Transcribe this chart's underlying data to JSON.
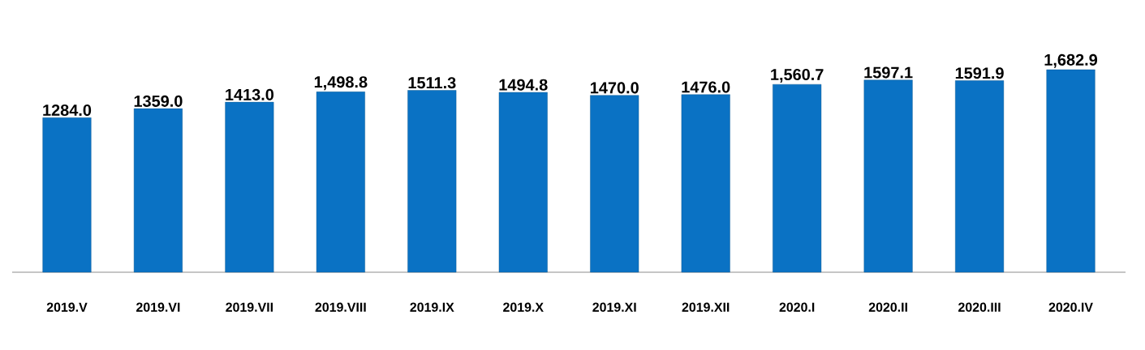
{
  "chart_data": {
    "type": "bar",
    "categories": [
      "2019.V",
      "2019.VI",
      "2019.VII",
      "2019.VIII",
      "2019.IX",
      "2019.X",
      "2019.XI",
      "2019.XII",
      "2020.I",
      "2020.II",
      "2020.III",
      "2020.IV"
    ],
    "values": [
      1284.0,
      1359.0,
      1413.0,
      1498.8,
      1511.3,
      1494.8,
      1470.0,
      1476.0,
      1560.7,
      1597.1,
      1591.9,
      1682.9
    ],
    "value_labels": [
      "1284.0",
      "1359.0",
      "1413.0",
      "1,498.8",
      "1511.3",
      "1494.8",
      "1470.0",
      "1476.0",
      "1,560.7",
      "1597.1",
      "1591.9",
      "1,682.9"
    ],
    "color": "#0a72c4"
  }
}
